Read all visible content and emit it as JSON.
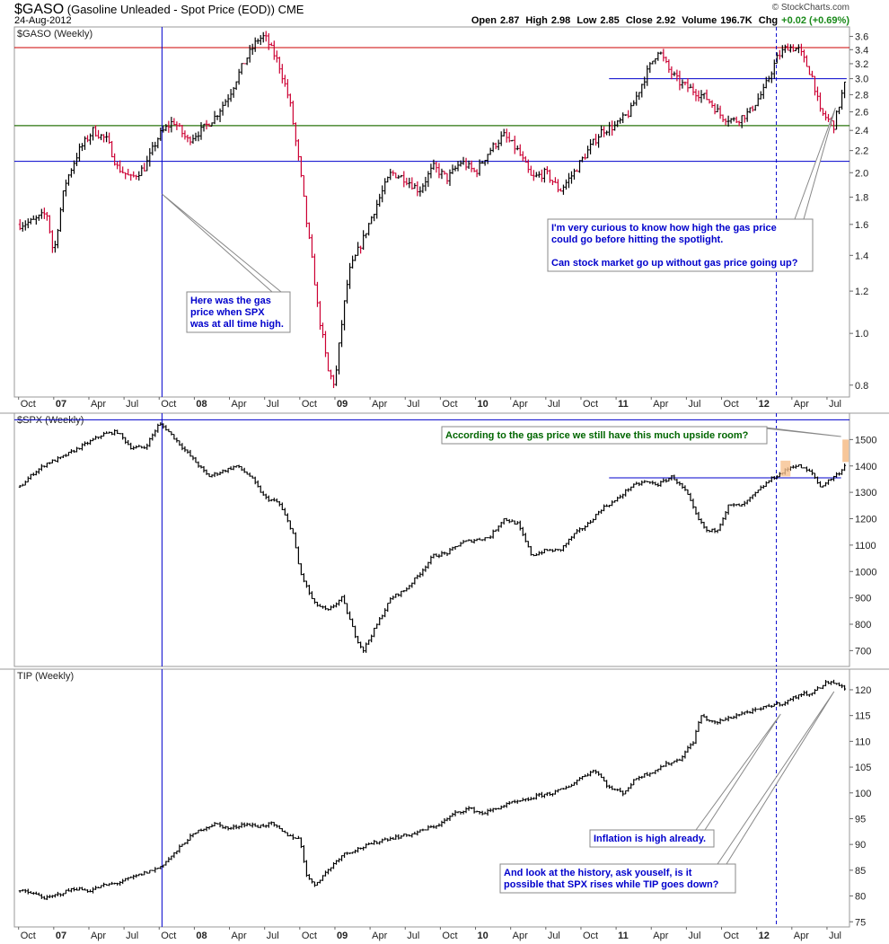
{
  "header": {
    "symbol": "$GASO",
    "description": "(Gasoline Unleaded - Spot Price (EOD))",
    "exchange": "CME",
    "date": "24-Aug-2012",
    "brand": "© StockCharts.com",
    "open_label": "Open",
    "open": "2.87",
    "high_label": "High",
    "high": "2.98",
    "low_label": "Low",
    "low": "2.85",
    "close_label": "Close",
    "close": "2.92",
    "volume_label": "Volume",
    "volume": "196.7K",
    "chg_label": "Chg",
    "chg": "+0.02 (+0.69%)"
  },
  "colors": {
    "up": "#000000",
    "down": "#cc0033",
    "resistance": "#cc0000",
    "support_green": "#008000",
    "blue_line": "#0000cc",
    "note_blue": "#0000cc",
    "note_green": "#006600",
    "highlight": "#f6c08e"
  },
  "chart_data": [
    {
      "type": "line",
      "title": "$GASO (Weekly)",
      "scale": "log",
      "ylim": [
        0.76,
        3.75
      ],
      "yticks": [
        "3.6",
        "3.4",
        "3.2",
        "3.0",
        "2.8",
        "2.6",
        "2.4",
        "2.2",
        "2.0",
        "1.8",
        "1.6",
        "1.4",
        "1.2",
        "1.0",
        "0.8"
      ],
      "x": [
        2006.76,
        2006.85,
        2006.95,
        2007.0,
        2007.08,
        2007.18,
        2007.28,
        2007.38,
        2007.45,
        2007.55,
        2007.65,
        2007.75,
        2007.85,
        2007.95,
        2008.05,
        2008.15,
        2008.25,
        2008.35,
        2008.45,
        2008.5,
        2008.6,
        2008.68,
        2008.72,
        2008.8,
        2008.88,
        2008.95,
        2009.0,
        2009.1,
        2009.2,
        2009.3,
        2009.4,
        2009.5,
        2009.6,
        2009.7,
        2009.8,
        2009.9,
        2010.0,
        2010.1,
        2010.2,
        2010.3,
        2010.4,
        2010.5,
        2010.6,
        2010.7,
        2010.8,
        2010.9,
        2011.0,
        2011.1,
        2011.2,
        2011.3,
        2011.38,
        2011.45,
        2011.55,
        2011.65,
        2011.75,
        2011.85,
        2011.95,
        2012.05,
        2012.15,
        2012.22,
        2012.3,
        2012.4,
        2012.45,
        2012.55,
        2012.63
      ],
      "values": [
        1.6,
        1.62,
        1.68,
        1.4,
        1.9,
        2.2,
        2.4,
        2.3,
        2.05,
        1.95,
        2.05,
        2.35,
        2.5,
        2.3,
        2.4,
        2.55,
        2.8,
        3.2,
        3.55,
        3.6,
        3.2,
        2.7,
        2.3,
        1.6,
        1.1,
        0.85,
        0.8,
        1.3,
        1.5,
        1.75,
        2.0,
        1.95,
        1.85,
        2.05,
        1.95,
        2.1,
        2.0,
        2.2,
        2.35,
        2.2,
        1.95,
        2.0,
        1.85,
        2.0,
        2.2,
        2.4,
        2.45,
        2.6,
        3.0,
        3.4,
        3.1,
        2.95,
        2.85,
        2.75,
        2.55,
        2.5,
        2.6,
        2.85,
        3.3,
        3.45,
        3.4,
        3.0,
        2.6,
        2.45,
        2.95
      ],
      "lines": [
        {
          "value": 3.43,
          "color": "red"
        },
        {
          "value": 2.45,
          "color": "red"
        },
        {
          "value": 2.45,
          "color": "green"
        },
        {
          "value": 2.1,
          "color": "blue"
        },
        {
          "value": 3.0,
          "color": "blue",
          "from": 2010.95,
          "to": 2012.64
        }
      ],
      "annotations": [
        {
          "text": [
            "Here was the gas",
            "price when SPX",
            "was at all time high."
          ]
        },
        {
          "text": [
            "I'm very curious to know how high the gas price",
            "could go before hitting the spotlight.",
            "",
            "Can stock market go up without gas price going up?"
          ]
        }
      ]
    },
    {
      "type": "line",
      "title": "$SPX (Weekly)",
      "ylim": [
        640,
        1600
      ],
      "yticks": [
        "1500",
        "1400",
        "1300",
        "1200",
        "1100",
        "1000",
        "900",
        "800",
        "700"
      ],
      "x": [
        2006.76,
        2006.85,
        2006.95,
        2007.05,
        2007.15,
        2007.25,
        2007.35,
        2007.45,
        2007.55,
        2007.65,
        2007.75,
        2007.8,
        2007.9,
        2008.0,
        2008.1,
        2008.2,
        2008.3,
        2008.4,
        2008.5,
        2008.6,
        2008.7,
        2008.75,
        2008.85,
        2008.95,
        2009.05,
        2009.15,
        2009.2,
        2009.3,
        2009.4,
        2009.5,
        2009.6,
        2009.7,
        2009.8,
        2009.9,
        2010.0,
        2010.1,
        2010.2,
        2010.3,
        2010.4,
        2010.5,
        2010.6,
        2010.7,
        2010.8,
        2010.9,
        2011.0,
        2011.1,
        2011.2,
        2011.3,
        2011.4,
        2011.5,
        2011.58,
        2011.65,
        2011.72,
        2011.8,
        2011.9,
        2012.0,
        2012.1,
        2012.2,
        2012.25,
        2012.3,
        2012.4,
        2012.45,
        2012.5,
        2012.6,
        2012.64
      ],
      "values": [
        1320,
        1370,
        1410,
        1430,
        1460,
        1490,
        1520,
        1530,
        1470,
        1470,
        1560,
        1540,
        1480,
        1420,
        1360,
        1380,
        1400,
        1360,
        1280,
        1260,
        1150,
        1000,
        880,
        850,
        900,
        750,
        700,
        800,
        900,
        930,
        990,
        1060,
        1070,
        1110,
        1120,
        1130,
        1200,
        1180,
        1060,
        1080,
        1080,
        1140,
        1180,
        1240,
        1270,
        1320,
        1340,
        1330,
        1360,
        1300,
        1200,
        1150,
        1160,
        1250,
        1250,
        1300,
        1350,
        1380,
        1400,
        1400,
        1370,
        1320,
        1340,
        1380,
        1420
      ],
      "lines": [
        {
          "value": 1575,
          "color": "blue"
        },
        {
          "value": 1355,
          "color": "blue",
          "from": 2010.95,
          "to": 2012.6
        }
      ],
      "annotations": [
        {
          "text": [
            "According to the gas price we still have this much upside room?"
          ]
        }
      ]
    },
    {
      "type": "line",
      "title": "TIP (Weekly)",
      "ylim": [
        74,
        124
      ],
      "yticks": [
        "120",
        "115",
        "110",
        "105",
        "100",
        "95",
        "90",
        "85",
        "80",
        "75"
      ],
      "x": [
        2006.76,
        2006.85,
        2006.95,
        2007.05,
        2007.15,
        2007.25,
        2007.35,
        2007.45,
        2007.55,
        2007.65,
        2007.75,
        2007.85,
        2007.95,
        2008.05,
        2008.15,
        2008.25,
        2008.35,
        2008.45,
        2008.55,
        2008.65,
        2008.75,
        2008.8,
        2008.85,
        2008.95,
        2009.05,
        2009.15,
        2009.25,
        2009.35,
        2009.45,
        2009.55,
        2009.65,
        2009.75,
        2009.85,
        2009.95,
        2010.05,
        2010.15,
        2010.25,
        2010.35,
        2010.45,
        2010.55,
        2010.65,
        2010.75,
        2010.85,
        2010.95,
        2011.05,
        2011.15,
        2011.25,
        2011.35,
        2011.45,
        2011.55,
        2011.6,
        2011.7,
        2011.8,
        2011.9,
        2012.0,
        2012.1,
        2012.2,
        2012.3,
        2012.4,
        2012.5,
        2012.6,
        2012.64
      ],
      "values": [
        81,
        80.5,
        79.5,
        80.5,
        81.5,
        81,
        82,
        82.5,
        83.5,
        84.5,
        85.5,
        88,
        91,
        93,
        94,
        93,
        94,
        93.5,
        94,
        92,
        91,
        84,
        82,
        85,
        88,
        89,
        90,
        91,
        91.5,
        92,
        93,
        94,
        96,
        97,
        96,
        97,
        98,
        98.5,
        99.5,
        100,
        101,
        103,
        104.5,
        101,
        100,
        103,
        104,
        105.5,
        106.5,
        110,
        115,
        113.5,
        114.5,
        115.5,
        116,
        117,
        117.5,
        119,
        119.5,
        121.5,
        121,
        119.5
      ],
      "annotations": [
        {
          "text": [
            "Inflation is high already."
          ]
        },
        {
          "text": [
            "And look at the history, ask youself, is it",
            "possible that SPX rises while TIP goes down?"
          ]
        }
      ]
    }
  ],
  "x_axis": {
    "labels": [
      "Oct",
      "07",
      "Apr",
      "Jul",
      "Oct",
      "08",
      "Apr",
      "Jul",
      "Oct",
      "09",
      "Apr",
      "Jul",
      "Oct",
      "10",
      "Apr",
      "Jul",
      "Oct",
      "11",
      "Apr",
      "Jul",
      "Oct",
      "12",
      "Apr",
      "Jul"
    ],
    "years": [
      2006.75,
      2007.0,
      2007.25,
      2007.5,
      2007.75,
      2008.0,
      2008.25,
      2008.5,
      2008.75,
      2009.0,
      2009.25,
      2009.5,
      2009.75,
      2010.0,
      2010.25,
      2010.5,
      2010.75,
      2011.0,
      2011.25,
      2011.5,
      2011.75,
      2012.0,
      2012.25,
      2012.5
    ],
    "bold": [
      false,
      true,
      false,
      false,
      false,
      true,
      false,
      false,
      false,
      true,
      false,
      false,
      false,
      true,
      false,
      false,
      false,
      true,
      false,
      false,
      false,
      true,
      false,
      false
    ]
  },
  "markers": {
    "oct_2007": 2007.77,
    "feb_2012": 2012.14
  }
}
